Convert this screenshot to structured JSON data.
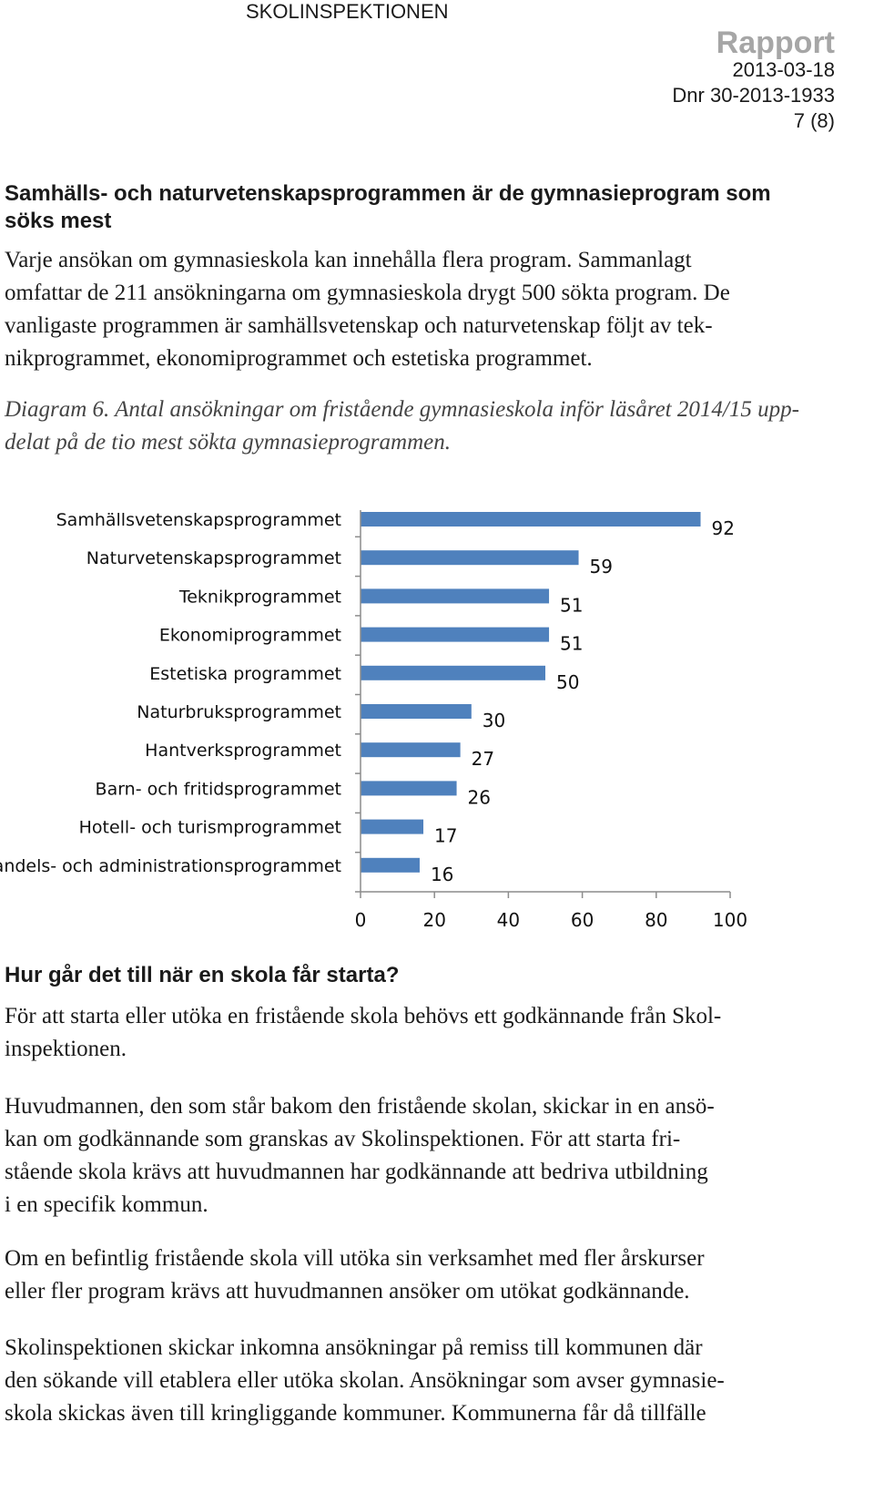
{
  "header": {
    "organization": "SKOLINSPEKTIONEN",
    "doc_type": "Rapport",
    "date": "2013-03-18",
    "dnr": "Dnr 30-2013-1933",
    "page": "7 (8)"
  },
  "section1": {
    "heading_line1": "Samhälls- och naturvetenskapsprogrammen är de gymnasieprogram som",
    "heading_line2": "söks mest",
    "body": [
      "Varje ansökan om gymnasieskola kan innehålla flera program. Sammanlagt",
      "omfattar de 211 ansökningarna om gymnasieskola drygt 500 sökta program. De",
      "vanligaste programmen är samhällsvetenskap och naturvetenskap följt av tek-",
      "nikprogrammet, ekonomiprogrammet och estetiska programmet."
    ],
    "caption": [
      "Diagram 6. Antal ansökningar om fristående gymnasieskola inför läsåret 2014/15 upp-",
      "delat på de tio mest sökta gymnasieprogrammen."
    ]
  },
  "chart_data": {
    "type": "bar",
    "orientation": "horizontal",
    "categories": [
      "Samhällsvetenskapsprogrammet",
      "Naturvetenskapsprogrammet",
      "Teknikprogrammet",
      "Ekonomiprogrammet",
      "Estetiska programmet",
      "Naturbruksprogrammet",
      "Hantverksprogrammet",
      "Barn- och fritidsprogrammet",
      "Hotell- och turismprogrammet",
      "Handels- och administrationsprogrammet"
    ],
    "values": [
      92,
      59,
      51,
      51,
      50,
      30,
      27,
      26,
      17,
      16
    ],
    "xlim": [
      0,
      100
    ],
    "xticks": [
      "0",
      "20",
      "40",
      "60",
      "80",
      "100"
    ],
    "data_labels": true,
    "grid": false,
    "legend": "none",
    "bar_color": "#4f81bd"
  },
  "section2": {
    "heading": "Hur går det till när en skola får starta?",
    "p1": [
      "För att starta eller utöka en fristående skola behövs ett godkännande från Skol-",
      "inspektionen."
    ],
    "p2": [
      "Huvudmannen, den som står bakom den fristående skolan, skickar in en ansö-",
      "kan om godkännande som granskas av Skolinspektionen. För att starta fri-",
      "stående skola krävs att huvudmannen har godkännande att bedriva utbildning",
      "i en specifik kommun."
    ],
    "p3": [
      "Om en befintlig fristående skola vill utöka sin verksamhet med fler årskurser",
      "eller fler program krävs att huvudmannen ansöker om utökat godkännande."
    ],
    "p4": [
      "Skolinspektionen skickar inkomna ansökningar på remiss till kommunen där",
      "den sökande vill etablera eller utöka skolan. Ansökningar som avser gymnasie-",
      "skola skickas även till kringliggande kommuner. Kommunerna får då tillfälle"
    ]
  }
}
